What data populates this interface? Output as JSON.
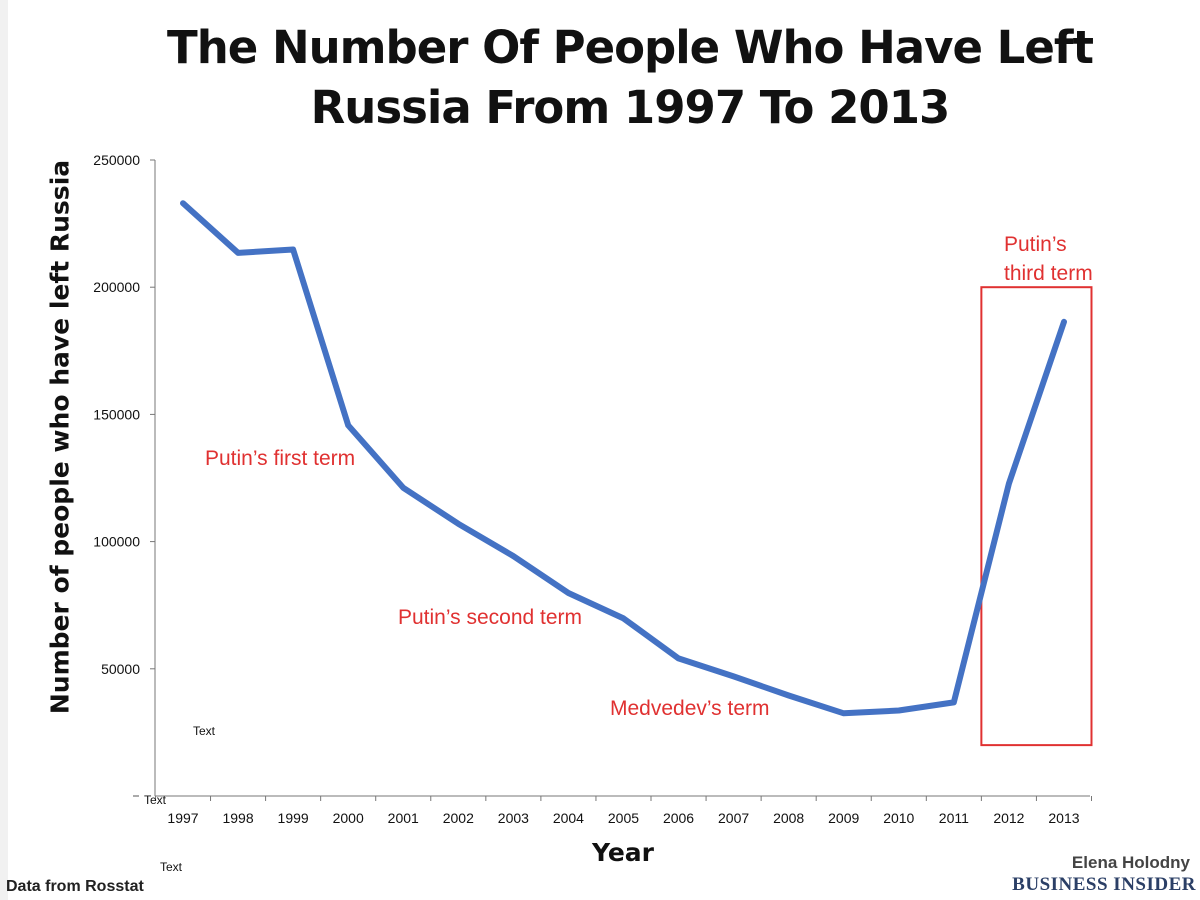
{
  "chart_data": {
    "type": "line",
    "title": "The Number Of People Who Have Left Russia From 1997 To 2013",
    "xlabel": "Year",
    "ylabel": "Number of people who have left Russia",
    "ylim": [
      0,
      250000
    ],
    "yticks": [
      "250000",
      "200000",
      "150000",
      "100000",
      "50000"
    ],
    "x": [
      "1997",
      "1998",
      "1999",
      "2000",
      "2001",
      "2002",
      "2003",
      "2004",
      "2005",
      "2006",
      "2007",
      "2008",
      "2009",
      "2010",
      "2011",
      "2012",
      "2013"
    ],
    "series": [
      {
        "values": [
          233000,
          213500,
          214800,
          145700,
          121200,
          107000,
          94300,
          79800,
          69800,
          54100,
          47000,
          39500,
          32500,
          33600,
          36800,
          122800,
          186400
        ],
        "color": "#4472c4"
      }
    ],
    "annotations": [
      {
        "text": "Putin’s first term",
        "color": "#e03131"
      },
      {
        "text": "Putin’s second term",
        "color": "#e03131"
      },
      {
        "text": "Medvedev’s term",
        "color": "#e03131"
      },
      {
        "text": "Putin’s third term",
        "color": "#e03131",
        "highlight": {
          "x_from": 2011.5,
          "x_to": 2013.5,
          "y_from": 20000,
          "y_to": 200000
        }
      }
    ],
    "grid": false,
    "legend": "none"
  },
  "page": {
    "title_line1": "The Number Of People Who Have Left",
    "title_line2": "Russia From 1997 To 2013",
    "source": "Data from Rosstat",
    "author": "Elena Holodny",
    "brand": "BUSINESS INSIDER",
    "placeholder_1": "Text",
    "placeholder_2": "Text",
    "placeholder_3": "Text",
    "annot_third_line1": "Putin’s",
    "annot_third_line2": "third term"
  }
}
